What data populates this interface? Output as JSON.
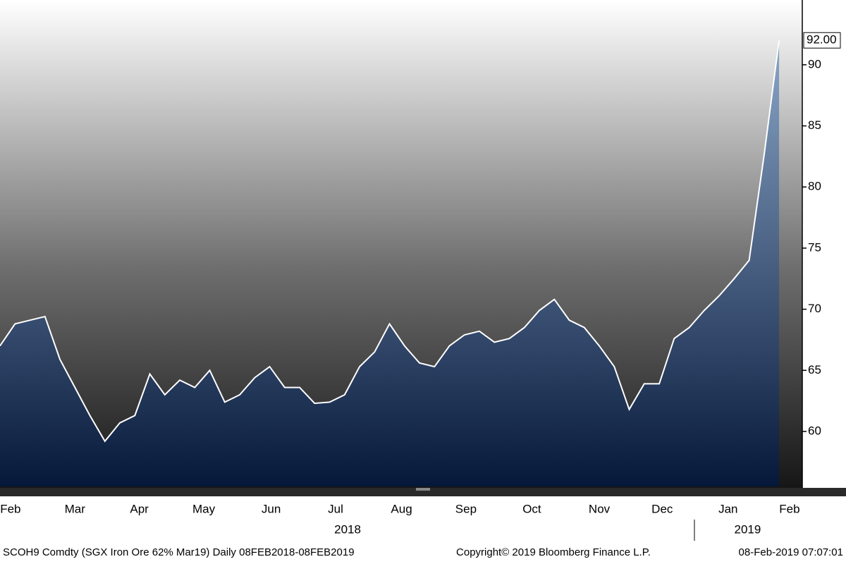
{
  "chart_data": {
    "type": "area",
    "values": [
      67.0,
      68.8,
      69.1,
      69.4,
      65.9,
      63.6,
      61.3,
      59.2,
      60.7,
      61.3,
      64.7,
      63.0,
      64.2,
      63.6,
      65.0,
      62.4,
      63.0,
      64.4,
      65.3,
      63.6,
      63.6,
      62.3,
      62.4,
      63.0,
      65.3,
      66.5,
      68.8,
      67.0,
      65.6,
      65.3,
      67.0,
      67.9,
      68.2,
      67.3,
      67.6,
      68.5,
      69.9,
      70.8,
      69.1,
      68.5,
      67.0,
      65.3,
      61.8,
      63.9,
      63.9,
      67.6,
      68.5,
      69.9,
      71.1,
      72.5,
      74.0,
      82.6,
      92.0
    ],
    "value_labels": [
      null,
      null,
      null,
      null,
      null,
      null,
      null,
      null,
      null,
      null,
      null,
      null,
      null,
      null,
      null,
      null,
      null,
      null,
      null,
      null,
      null,
      null,
      null,
      null,
      null,
      null,
      null,
      null,
      null,
      null,
      null,
      null,
      null,
      null,
      null,
      null,
      null,
      null,
      null,
      null,
      null,
      null,
      null,
      null,
      null,
      null,
      null,
      null,
      null,
      null,
      null,
      null,
      "92.00"
    ],
    "line_color": "#ffffff",
    "fill_top": "#8aa6c8",
    "fill_bottom": "#06183a",
    "xlim": [
      0,
      53.55
    ],
    "xticks": [
      {
        "value": 0.7,
        "label": "Feb"
      },
      {
        "value": 5.0,
        "label": "Mar"
      },
      {
        "value": 9.3,
        "label": "Apr"
      },
      {
        "value": 13.6,
        "label": "May"
      },
      {
        "value": 18.1,
        "label": "Jun"
      },
      {
        "value": 22.4,
        "label": "Jul"
      },
      {
        "value": 26.8,
        "label": "Aug"
      },
      {
        "value": 31.1,
        "label": "Sep"
      },
      {
        "value": 35.5,
        "label": "Oct"
      },
      {
        "value": 40.0,
        "label": "Nov"
      },
      {
        "value": 44.2,
        "label": "Dec"
      },
      {
        "value": 48.6,
        "label": "Jan"
      },
      {
        "value": 52.7,
        "label": "Feb"
      }
    ],
    "years": [
      {
        "value": 23.2,
        "label": "2018"
      },
      {
        "value": 49.9,
        "label": "2019"
      }
    ],
    "year_breaks": [
      46.35
    ],
    "ylim": [
      55.5,
      95.3
    ],
    "yticks": [
      60,
      65,
      70,
      75,
      80,
      85,
      90
    ],
    "grid": false,
    "footer": {
      "security": "SCOH9 Comdty (SGX Iron Ore 62%  Mar19)  Daily 08FEB2018-08FEB2019",
      "copyright": "Copyright© 2019 Bloomberg Finance L.P.",
      "timestamp": "08-Feb-2019 07:07:01"
    }
  }
}
